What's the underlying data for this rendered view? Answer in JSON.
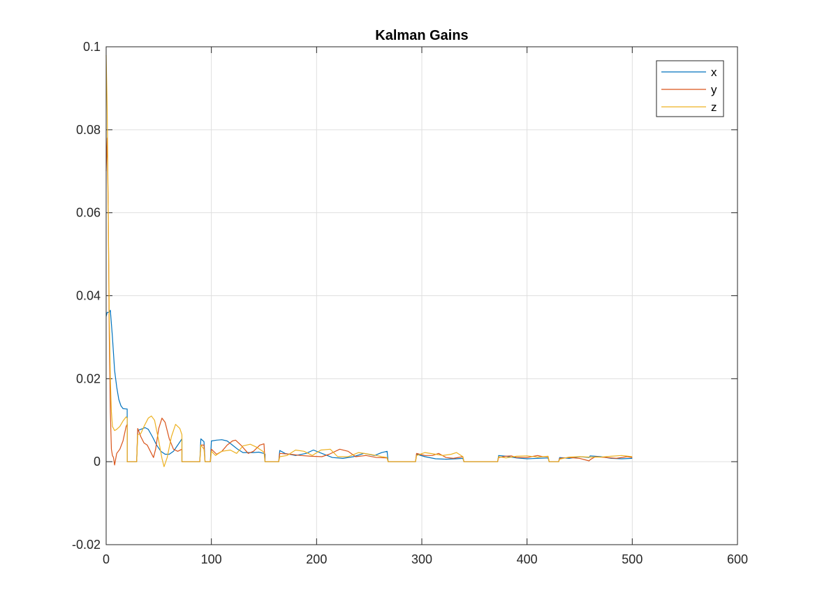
{
  "chart_data": {
    "type": "line",
    "title": "Kalman Gains",
    "xlabel": "",
    "ylabel": "",
    "xlim": [
      0,
      600
    ],
    "ylim": [
      -0.02,
      0.1
    ],
    "xticks": [
      0,
      100,
      200,
      300,
      400,
      500,
      600
    ],
    "yticks": [
      -0.02,
      0,
      0.02,
      0.04,
      0.06,
      0.08,
      0.1
    ],
    "xtick_labels": [
      "0",
      "100",
      "200",
      "300",
      "400",
      "500",
      "600"
    ],
    "ytick_labels": [
      "-0.02",
      "0",
      "0.02",
      "0.04",
      "0.06",
      "0.08",
      "0.1"
    ],
    "grid": true,
    "legend_position": "top-right",
    "series": [
      {
        "name": "x",
        "color": "#0072BD",
        "points": [
          [
            0,
            0.035
          ],
          [
            1,
            0.036
          ],
          [
            3,
            0.036
          ],
          [
            4,
            0.0365
          ],
          [
            6,
            0.03
          ],
          [
            8,
            0.022
          ],
          [
            10,
            0.018
          ],
          [
            12,
            0.015
          ],
          [
            14,
            0.0135
          ],
          [
            16,
            0.0128
          ],
          [
            19,
            0.0127
          ],
          [
            20,
            0.0127
          ],
          [
            20,
            0
          ],
          [
            29,
            0
          ],
          [
            30,
            0.0075
          ],
          [
            33,
            0.0078
          ],
          [
            37,
            0.0082
          ],
          [
            40,
            0.0078
          ],
          [
            44,
            0.006
          ],
          [
            48,
            0.004
          ],
          [
            52,
            0.0025
          ],
          [
            56,
            0.0018
          ],
          [
            60,
            0.0018
          ],
          [
            64,
            0.0025
          ],
          [
            68,
            0.004
          ],
          [
            72,
            0.0055
          ],
          [
            72,
            0
          ],
          [
            89,
            0
          ],
          [
            90,
            0.0055
          ],
          [
            93,
            0.0048
          ],
          [
            94,
            0
          ],
          [
            99,
            0
          ],
          [
            100,
            0.005
          ],
          [
            105,
            0.0052
          ],
          [
            110,
            0.0053
          ],
          [
            115,
            0.005
          ],
          [
            120,
            0.004
          ],
          [
            125,
            0.003
          ],
          [
            130,
            0.0022
          ],
          [
            140,
            0.0022
          ],
          [
            145,
            0.0023
          ],
          [
            150,
            0.002
          ],
          [
            151,
            0.0018
          ],
          [
            151,
            0
          ],
          [
            164,
            0
          ],
          [
            165,
            0.0027
          ],
          [
            170,
            0.002
          ],
          [
            180,
            0.0015
          ],
          [
            190,
            0.002
          ],
          [
            197,
            0.0028
          ],
          [
            205,
            0.002
          ],
          [
            215,
            0.001
          ],
          [
            225,
            0.0008
          ],
          [
            235,
            0.0012
          ],
          [
            245,
            0.002
          ],
          [
            255,
            0.0015
          ],
          [
            262,
            0.0022
          ],
          [
            267,
            0.0025
          ],
          [
            268,
            0
          ],
          [
            294,
            0
          ],
          [
            295,
            0.0018
          ],
          [
            303,
            0.0012
          ],
          [
            313,
            0.0007
          ],
          [
            323,
            0.0006
          ],
          [
            333,
            0.0007
          ],
          [
            339,
            0.0008
          ],
          [
            340,
            0
          ],
          [
            372,
            0
          ],
          [
            373,
            0.0015
          ],
          [
            380,
            0.0013
          ],
          [
            390,
            0.0009
          ],
          [
            400,
            0.0007
          ],
          [
            410,
            0.0008
          ],
          [
            420,
            0.0009
          ],
          [
            421,
            0
          ],
          [
            430,
            0
          ],
          [
            431,
            0.001
          ],
          [
            440,
            0.0008
          ],
          [
            450,
            0.0012
          ],
          [
            459,
            0.001
          ],
          [
            460,
            0.0014
          ],
          [
            470,
            0.0012
          ],
          [
            480,
            0.0008
          ],
          [
            490,
            0.0007
          ],
          [
            500,
            0.0008
          ]
        ]
      },
      {
        "name": "y",
        "color": "#D95319",
        "points": [
          [
            0,
            0.07
          ],
          [
            1,
            0.078
          ],
          [
            2,
            0.06
          ],
          [
            3,
            0.03
          ],
          [
            4,
            0.012
          ],
          [
            5,
            0.003
          ],
          [
            6,
            0.0015
          ],
          [
            7,
            0.001
          ],
          [
            8,
            -0.0008
          ],
          [
            10,
            0.002
          ],
          [
            13,
            0.003
          ],
          [
            16,
            0.005
          ],
          [
            19,
            0.0085
          ],
          [
            20,
            0.009
          ],
          [
            20,
            0
          ],
          [
            29,
            0
          ],
          [
            30,
            0.008
          ],
          [
            33,
            0.006
          ],
          [
            36,
            0.0045
          ],
          [
            39,
            0.004
          ],
          [
            42,
            0.0025
          ],
          [
            45,
            0.001
          ],
          [
            47,
            0.003
          ],
          [
            50,
            0.008
          ],
          [
            53,
            0.0105
          ],
          [
            56,
            0.0095
          ],
          [
            60,
            0.0055
          ],
          [
            64,
            0.003
          ],
          [
            68,
            0.0025
          ],
          [
            72,
            0.003
          ],
          [
            72,
            0
          ],
          [
            89,
            0
          ],
          [
            90,
            0.004
          ],
          [
            93,
            0.004
          ],
          [
            94,
            0
          ],
          [
            99,
            0
          ],
          [
            100,
            0.003
          ],
          [
            105,
            0.0018
          ],
          [
            110,
            0.0025
          ],
          [
            115,
            0.004
          ],
          [
            120,
            0.005
          ],
          [
            123,
            0.0052
          ],
          [
            128,
            0.004
          ],
          [
            135,
            0.002
          ],
          [
            140,
            0.0025
          ],
          [
            146,
            0.004
          ],
          [
            150,
            0.0043
          ],
          [
            151,
            0
          ],
          [
            164,
            0
          ],
          [
            165,
            0.002
          ],
          [
            175,
            0.0018
          ],
          [
            185,
            0.0015
          ],
          [
            195,
            0.0013
          ],
          [
            205,
            0.0012
          ],
          [
            212,
            0.0018
          ],
          [
            222,
            0.003
          ],
          [
            230,
            0.0025
          ],
          [
            237,
            0.0012
          ],
          [
            247,
            0.0015
          ],
          [
            257,
            0.001
          ],
          [
            267,
            0.0009
          ],
          [
            268,
            0
          ],
          [
            294,
            0
          ],
          [
            295,
            0.002
          ],
          [
            303,
            0.0015
          ],
          [
            310,
            0.0015
          ],
          [
            316,
            0.002
          ],
          [
            323,
            0.001
          ],
          [
            330,
            0.0008
          ],
          [
            339,
            0.0012
          ],
          [
            340,
            0
          ],
          [
            372,
            0
          ],
          [
            373,
            0.001
          ],
          [
            380,
            0.0013
          ],
          [
            385,
            0.0014
          ],
          [
            390,
            0.001
          ],
          [
            400,
            0.001
          ],
          [
            410,
            0.0015
          ],
          [
            415,
            0.0012
          ],
          [
            420,
            0.0012
          ],
          [
            421,
            0
          ],
          [
            430,
            0
          ],
          [
            431,
            0.0008
          ],
          [
            440,
            0.001
          ],
          [
            450,
            0.0008
          ],
          [
            459,
            0.0002
          ],
          [
            460,
            0.0005
          ],
          [
            465,
            0.0012
          ],
          [
            475,
            0.001
          ],
          [
            485,
            0.0008
          ],
          [
            495,
            0.0012
          ],
          [
            500,
            0.001
          ]
        ]
      },
      {
        "name": "z",
        "color": "#EDB120",
        "points": [
          [
            0,
            0.098
          ],
          [
            1,
            0.085
          ],
          [
            2,
            0.06
          ],
          [
            3,
            0.035
          ],
          [
            4,
            0.02
          ],
          [
            5,
            0.012
          ],
          [
            6,
            0.0085
          ],
          [
            8,
            0.0075
          ],
          [
            10,
            0.0078
          ],
          [
            13,
            0.0085
          ],
          [
            16,
            0.0098
          ],
          [
            19,
            0.0108
          ],
          [
            20,
            0.0105
          ],
          [
            20,
            0
          ],
          [
            29,
            0
          ],
          [
            30,
            0.0065
          ],
          [
            33,
            0.0068
          ],
          [
            36,
            0.0085
          ],
          [
            40,
            0.0105
          ],
          [
            43,
            0.011
          ],
          [
            46,
            0.01
          ],
          [
            50,
            0.005
          ],
          [
            53,
            0.0008
          ],
          [
            55,
            -0.0012
          ],
          [
            58,
            0.001
          ],
          [
            62,
            0.006
          ],
          [
            66,
            0.009
          ],
          [
            70,
            0.008
          ],
          [
            72,
            0.0065
          ],
          [
            72,
            0
          ],
          [
            89,
            0
          ],
          [
            90,
            0.004
          ],
          [
            93,
            0.003
          ],
          [
            94,
            0
          ],
          [
            99,
            0
          ],
          [
            100,
            0.0025
          ],
          [
            104,
            0.0015
          ],
          [
            110,
            0.0025
          ],
          [
            118,
            0.0028
          ],
          [
            124,
            0.002
          ],
          [
            130,
            0.0038
          ],
          [
            137,
            0.0042
          ],
          [
            143,
            0.0035
          ],
          [
            150,
            0.0023
          ],
          [
            151,
            0
          ],
          [
            164,
            0
          ],
          [
            165,
            0.0012
          ],
          [
            172,
            0.0015
          ],
          [
            180,
            0.0028
          ],
          [
            188,
            0.0025
          ],
          [
            196,
            0.0015
          ],
          [
            204,
            0.0028
          ],
          [
            213,
            0.003
          ],
          [
            220,
            0.0012
          ],
          [
            230,
            0.0012
          ],
          [
            240,
            0.0022
          ],
          [
            250,
            0.0018
          ],
          [
            257,
            0.0015
          ],
          [
            262,
            0.0012
          ],
          [
            267,
            0.001
          ],
          [
            268,
            0
          ],
          [
            294,
            0
          ],
          [
            295,
            0.0015
          ],
          [
            303,
            0.0022
          ],
          [
            313,
            0.0018
          ],
          [
            320,
            0.0015
          ],
          [
            328,
            0.0018
          ],
          [
            333,
            0.0022
          ],
          [
            339,
            0.0012
          ],
          [
            340,
            0
          ],
          [
            372,
            0
          ],
          [
            373,
            0.0012
          ],
          [
            380,
            0.0009
          ],
          [
            390,
            0.0013
          ],
          [
            400,
            0.0014
          ],
          [
            410,
            0.0011
          ],
          [
            420,
            0.0013
          ],
          [
            421,
            0
          ],
          [
            430,
            0
          ],
          [
            431,
            0.0006
          ],
          [
            440,
            0.0011
          ],
          [
            450,
            0.0012
          ],
          [
            460,
            0.0011
          ],
          [
            470,
            0.0011
          ],
          [
            480,
            0.0013
          ],
          [
            490,
            0.0015
          ],
          [
            500,
            0.0012
          ]
        ]
      }
    ]
  }
}
